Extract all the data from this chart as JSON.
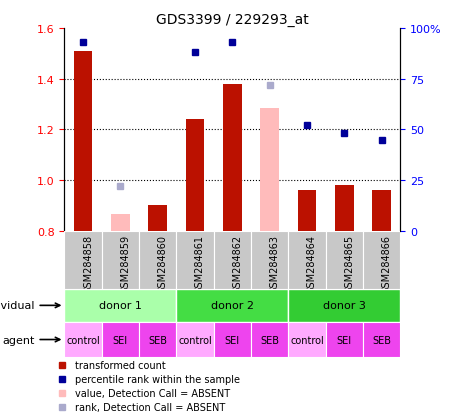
{
  "title": "GDS3399 / 229293_at",
  "samples": [
    "GSM284858",
    "GSM284859",
    "GSM284860",
    "GSM284861",
    "GSM284862",
    "GSM284863",
    "GSM284864",
    "GSM284865",
    "GSM284866"
  ],
  "bar_values": [
    1.51,
    null,
    0.9,
    1.24,
    1.38,
    null,
    0.96,
    0.98,
    0.96
  ],
  "bar_absent": [
    null,
    0.865,
    null,
    null,
    null,
    1.285,
    null,
    null,
    null
  ],
  "dot_percentile": [
    93,
    null,
    null,
    88,
    93,
    null,
    52,
    48,
    45
  ],
  "dot_percentile_absent": [
    null,
    22,
    null,
    null,
    null,
    72,
    null,
    null,
    null
  ],
  "ylim": [
    0.8,
    1.6
  ],
  "y2lim": [
    0,
    100
  ],
  "yticks": [
    0.8,
    1.0,
    1.2,
    1.4,
    1.6
  ],
  "y2ticks": [
    0,
    25,
    50,
    75,
    100
  ],
  "y2ticklabels": [
    "0",
    "25",
    "50",
    "75",
    "100%"
  ],
  "grid_lines": [
    1.0,
    1.2,
    1.4
  ],
  "donor_groups": [
    {
      "label": "donor 1",
      "start": 0,
      "end": 3,
      "color": "#AAFFAA"
    },
    {
      "label": "donor 2",
      "start": 3,
      "end": 6,
      "color": "#44DD44"
    },
    {
      "label": "donor 3",
      "start": 6,
      "end": 9,
      "color": "#33CC33"
    }
  ],
  "agent_labels": [
    "control",
    "SEI",
    "SEB",
    "control",
    "SEI",
    "SEB",
    "control",
    "SEI",
    "SEB"
  ],
  "agent_colors": [
    "#FFAAFF",
    "#EE44EE",
    "#EE44EE",
    "#FFAAFF",
    "#EE44EE",
    "#EE44EE",
    "#FFAAFF",
    "#EE44EE",
    "#EE44EE"
  ],
  "bar_color": "#BB1100",
  "bar_absent_color": "#FFBBBB",
  "dot_color": "#000099",
  "dot_absent_color": "#AAAACC",
  "sample_bg": "#C8C8C8",
  "legend_items": [
    {
      "color": "#BB1100",
      "label": "transformed count",
      "shape": "s"
    },
    {
      "color": "#000099",
      "label": "percentile rank within the sample",
      "shape": "s"
    },
    {
      "color": "#FFBBBB",
      "label": "value, Detection Call = ABSENT",
      "shape": "s"
    },
    {
      "color": "#AAAACC",
      "label": "rank, Detection Call = ABSENT",
      "shape": "s"
    }
  ]
}
